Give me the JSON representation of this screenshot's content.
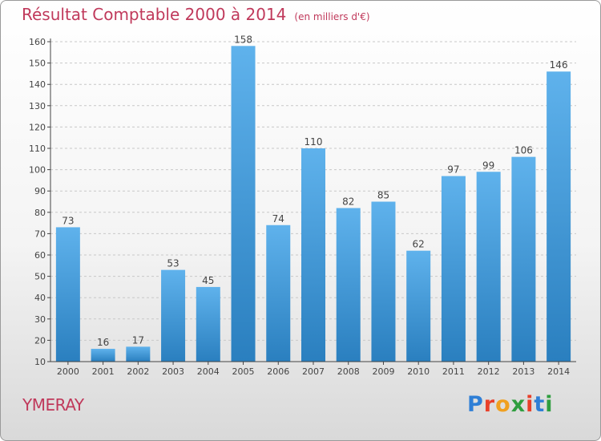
{
  "header": {
    "title": "Résultat Comptable 2000 à 2014",
    "unit": "(en milliers d'€)"
  },
  "commune": "YMERAY",
  "logo": {
    "text": "Proxiti",
    "letter_colors": [
      "#2f7fd6",
      "#e8402a",
      "#f0a020",
      "#2f9e3f",
      "#e8402a",
      "#2f7fd6",
      "#2f9e3f"
    ]
  },
  "colors": {
    "bar_top": "#5fb2ec",
    "bar_bottom": "#2a7fbf",
    "title": "#c0395b",
    "axis": "#444444",
    "grid": "#c8c8c8"
  },
  "chart_data": {
    "type": "bar",
    "title": "Résultat Comptable 2000 à 2014",
    "ylabel": "en milliers d'€",
    "xlabel": "",
    "categories": [
      "2000",
      "2001",
      "2002",
      "2003",
      "2004",
      "2005",
      "2006",
      "2007",
      "2008",
      "2009",
      "2010",
      "2011",
      "2012",
      "2013",
      "2014"
    ],
    "values": [
      73,
      16,
      17,
      53,
      45,
      158,
      74,
      110,
      82,
      85,
      62,
      97,
      99,
      106,
      146
    ],
    "ylim": [
      10,
      160
    ],
    "yticks": [
      10,
      20,
      30,
      40,
      50,
      60,
      70,
      80,
      90,
      100,
      110,
      120,
      130,
      140,
      150,
      160
    ],
    "grid": true,
    "data_labels": true
  }
}
